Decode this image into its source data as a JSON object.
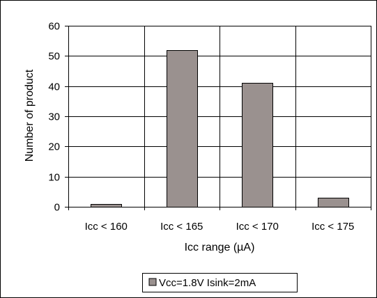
{
  "chart_data": {
    "type": "bar",
    "categories": [
      "Icc < 160",
      "Icc < 165",
      "Icc < 170",
      "Icc < 175"
    ],
    "series": [
      {
        "name": "Vcc=1.8V Isink=2mA",
        "values": [
          1,
          52,
          41,
          3
        ]
      }
    ],
    "xlabel": "Icc range (µA)",
    "ylabel": "Number of product",
    "ylim": [
      0,
      60
    ],
    "yticks": [
      0,
      10,
      20,
      30,
      40,
      50,
      60
    ],
    "grid": true,
    "legend_position": "bottom",
    "colors": {
      "bar_fill": "#9a918f",
      "bar_stroke": "#000000",
      "grid": "#000000",
      "frame": "#000000"
    }
  }
}
